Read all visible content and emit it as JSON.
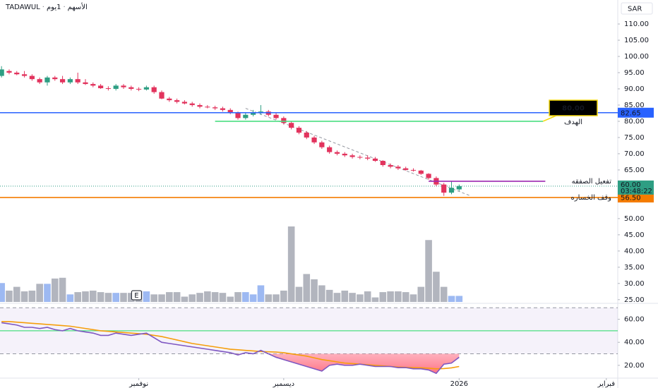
{
  "chart_data": {
    "type": "candlestick",
    "header": [
      "TADAWUL",
      "الأسهم",
      "1يوم"
    ],
    "currency": "SAR",
    "up_color": "#2e9e83",
    "down_color": "#e2335d",
    "grid": false,
    "xlim": [
      -0.2,
      80.8
    ],
    "xticks": [
      {
        "value": 18,
        "label": "نوفمبر"
      },
      {
        "value": 37,
        "label": "ديسمبر"
      },
      {
        "value": 60,
        "label": "2026"
      },
      {
        "value": 79.3,
        "label": "فبراير"
      }
    ],
    "ylim": [
      24.3,
      117.4
    ],
    "yticks": [
      {
        "value": 110,
        "label": "110.00"
      },
      {
        "value": 105,
        "label": "105.00"
      },
      {
        "value": 100,
        "label": "100.00"
      },
      {
        "value": 95,
        "label": "95.00"
      },
      {
        "value": 90,
        "label": "90.00"
      },
      {
        "value": 85,
        "label": "85.00"
      },
      {
        "value": 80,
        "label": "80.00"
      },
      {
        "value": 75,
        "label": "75.00"
      },
      {
        "value": 70,
        "label": "70.00"
      },
      {
        "value": 65,
        "label": "65.00"
      },
      {
        "value": 50,
        "label": "50.00"
      },
      {
        "value": 45,
        "label": "45.00"
      },
      {
        "value": 40,
        "label": "40.00"
      },
      {
        "value": 35,
        "label": "35.00"
      },
      {
        "value": 30,
        "label": "30.00"
      },
      {
        "value": 25,
        "label": "25.00"
      }
    ],
    "open": [
      94,
      95.5,
      95,
      94.5,
      94,
      93,
      92,
      93.5,
      93,
      92,
      93,
      92,
      91.5,
      91,
      90.2,
      90,
      91,
      90.5,
      90,
      89.8,
      90.5,
      89,
      87,
      86.5,
      86,
      85.5,
      85,
      84.5,
      84.3,
      84,
      83.5,
      82.5,
      81,
      82,
      82.5,
      83,
      82,
      81,
      79.5,
      78,
      76.5,
      75,
      73.5,
      72,
      70.5,
      70,
      69.5,
      69,
      68.8,
      68.5,
      67.8,
      66.5,
      66,
      65.5,
      65,
      64.8,
      63.8,
      62.5,
      60.5,
      58,
      59
    ],
    "high": [
      97,
      96,
      95.5,
      95.5,
      94.5,
      93.5,
      94,
      94,
      94,
      93.5,
      95,
      93,
      92,
      91.5,
      90.8,
      91.5,
      91.5,
      91,
      90.5,
      91,
      91,
      89.5,
      87.5,
      87,
      86.5,
      86,
      85.5,
      85,
      84.8,
      84.5,
      84,
      83,
      82.5,
      83.5,
      85,
      83.5,
      82.5,
      81.5,
      80,
      78.5,
      77,
      75.5,
      74,
      72.5,
      71,
      70.5,
      70,
      69.5,
      69.5,
      69,
      68,
      67,
      66.5,
      66,
      65.5,
      65,
      64,
      63,
      61,
      61.5,
      60.5
    ],
    "low": [
      93.5,
      94.5,
      94.2,
      93.5,
      92.5,
      91.5,
      91,
      92.5,
      91.5,
      91.5,
      91.5,
      91.2,
      90.5,
      90,
      89.5,
      89.5,
      90,
      89.5,
      89.3,
      89.5,
      88.5,
      86.8,
      86,
      85.5,
      85.2,
      84.5,
      84,
      84,
      83.5,
      83,
      82.2,
      80.5,
      80.5,
      81.5,
      82,
      81.5,
      80.5,
      79,
      77.5,
      76,
      74.5,
      73,
      71.5,
      70,
      69.5,
      69,
      68.5,
      68.3,
      68,
      67.5,
      66,
      65.5,
      65,
      64.8,
      64.5,
      63.5,
      62,
      60,
      57,
      57.5,
      58.5
    ],
    "close": [
      96,
      95,
      94.5,
      94,
      93,
      92,
      93.5,
      93,
      92,
      93,
      92,
      91.5,
      91,
      90.2,
      90,
      91,
      90.5,
      90,
      89.8,
      90.5,
      89,
      87,
      86.5,
      86,
      85.5,
      85,
      84.5,
      84.3,
      84,
      83.5,
      82.5,
      81,
      82,
      82.5,
      83,
      82,
      81,
      79.5,
      78,
      76.5,
      75,
      73.5,
      72,
      70.5,
      70,
      69.5,
      69,
      68.8,
      68.5,
      67.8,
      66.5,
      66,
      65.5,
      65,
      64.8,
      63.8,
      62.5,
      60.5,
      58,
      59.5,
      60
    ],
    "volume": {
      "up_color": "#9db9f2",
      "down_color": "#b2b5be",
      "vlim": [
        0,
        400
      ],
      "values": [
        25,
        15,
        20,
        14,
        15,
        24,
        24,
        31,
        32,
        10,
        13,
        14,
        15,
        13,
        12,
        12,
        12,
        12,
        15,
        14,
        10,
        10,
        13,
        13,
        7,
        10,
        12,
        14,
        13,
        12,
        7,
        13,
        13,
        10,
        22,
        10,
        10,
        15,
        100,
        20,
        37,
        30,
        22,
        16,
        12,
        15,
        12,
        10,
        14,
        6,
        13,
        14,
        14,
        13,
        10,
        20,
        82,
        40,
        20,
        8,
        8
      ]
    },
    "events": [
      {
        "x": 17.7,
        "label": "E"
      }
    ],
    "trendline": {
      "x": [
        32,
        61.5
      ],
      "y": [
        84,
        57
      ],
      "color": "#9598a1"
    },
    "levels": [
      {
        "value": 82.65,
        "color": "#2962ff",
        "price_label": "82.65"
      },
      {
        "value": 80,
        "color": "#4ade80",
        "x_from": 28,
        "x_to": 71,
        "name": "الهدف",
        "name_color": "#2e9e3e",
        "callout": "80.00"
      },
      {
        "value": 61.5,
        "color": "#9c27b0",
        "x_from": 56,
        "x_to": 71.3,
        "name": "تفعيل الصفقه",
        "name_color": "#2e9e3e"
      },
      {
        "value": 56.5,
        "color": "#f57c00",
        "price_label": "56.50",
        "name": "وقف الخساره",
        "name_color": "#f23645"
      }
    ],
    "last_price": {
      "value": 60,
      "label": "60.00",
      "countdown": "03:48:22",
      "color": "#2e9e83"
    },
    "rsi": {
      "ylim": [
        8.9,
        72.6
      ],
      "yticks": [
        {
          "value": 60,
          "label": "60.00"
        },
        {
          "value": 40,
          "label": "40.00"
        },
        {
          "value": 20,
          "label": "20.00"
        }
      ],
      "upper": 70,
      "middle": 50,
      "lower": 30,
      "color": "#7e57c2",
      "ma_color": "#f59e0b",
      "middle_color": "#4ade80",
      "values": [
        57,
        56,
        55,
        53,
        53,
        52,
        53,
        51,
        50,
        52,
        50,
        49,
        48,
        46,
        46,
        48,
        47,
        46,
        47,
        48,
        44,
        40,
        39,
        38,
        37,
        36,
        35,
        34,
        33,
        32,
        31,
        29,
        31,
        30,
        33,
        30,
        27,
        25,
        23,
        21,
        19,
        17,
        15,
        20,
        21,
        20,
        20,
        21,
        20,
        19,
        19,
        19,
        18,
        18,
        17,
        17,
        16,
        13,
        21,
        22,
        27
      ],
      "ma": [
        58,
        58,
        57.5,
        57,
        56.5,
        56,
        55.5,
        55,
        54.5,
        54,
        53,
        52,
        51,
        50,
        49.5,
        49,
        48.5,
        48,
        47.5,
        47,
        46,
        45,
        43.5,
        42,
        40.5,
        39,
        38,
        37,
        36,
        35,
        34,
        33.5,
        33,
        32.5,
        32,
        31.8,
        31.5,
        31,
        30,
        29,
        28,
        26.5,
        25,
        24,
        23,
        22,
        21.5,
        21,
        20.5,
        20,
        19.5,
        19,
        18.5,
        18.2,
        18,
        17.8,
        17.5,
        17,
        17.2,
        17.8,
        19
      ]
    }
  }
}
